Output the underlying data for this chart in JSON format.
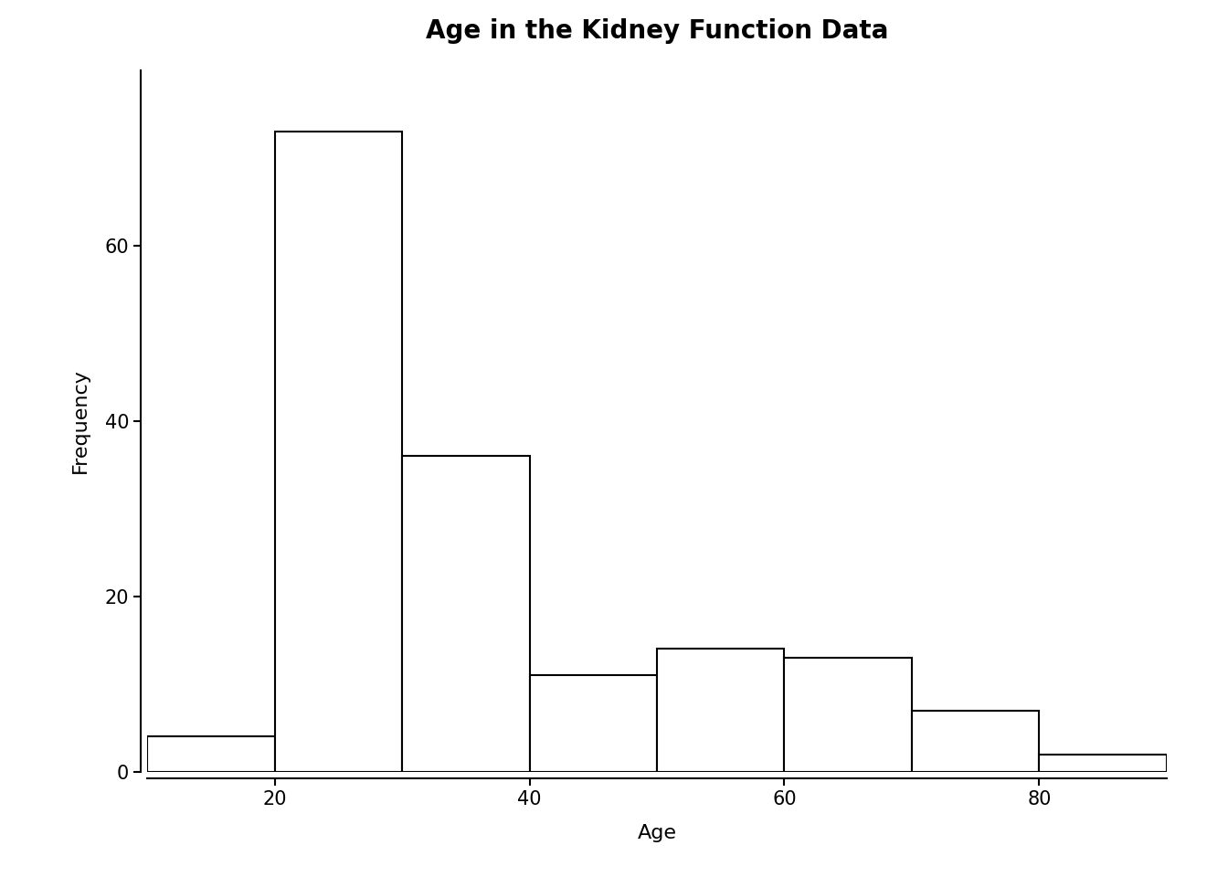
{
  "title": "Age in the Kidney Function Data",
  "xlabel": "Age",
  "ylabel": "Frequency",
  "bin_edges": [
    10,
    20,
    30,
    40,
    50,
    60,
    70,
    80,
    90
  ],
  "frequencies": [
    4,
    73,
    36,
    11,
    14,
    13,
    7,
    2
  ],
  "xlim": [
    10,
    90
  ],
  "ylim": [
    0,
    80
  ],
  "yticks": [
    0,
    20,
    40,
    60
  ],
  "xticks": [
    20,
    40,
    60,
    80
  ],
  "bar_facecolor": "#ffffff",
  "bar_edgecolor": "#000000",
  "background_color": "#ffffff",
  "title_fontsize": 20,
  "axis_label_fontsize": 16,
  "tick_fontsize": 15,
  "linewidth": 1.5,
  "spine_linewidth": 1.5
}
